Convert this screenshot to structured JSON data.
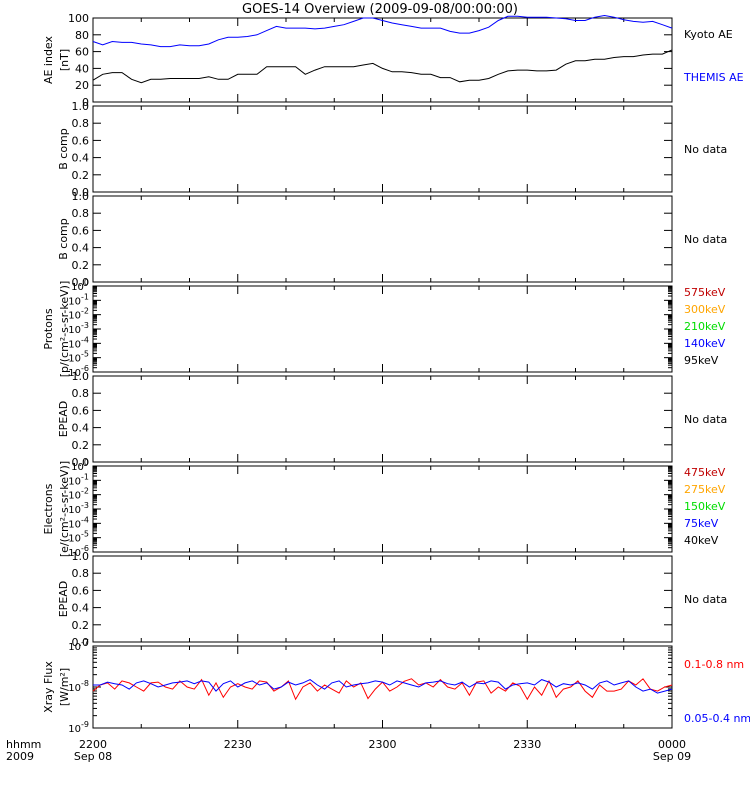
{
  "title": "GOES-14 Overview (2009-09-08/00:00:00)",
  "x_axis": {
    "row_label_1": "hhmm",
    "row_label_2": "2009",
    "ticks": [
      {
        "t": 0,
        "time": "2200",
        "date": "Sep 08"
      },
      {
        "t": 30,
        "time": "2230",
        "date": ""
      },
      {
        "t": 60,
        "time": "2300",
        "date": ""
      },
      {
        "t": 90,
        "time": "2330",
        "date": ""
      },
      {
        "t": 120,
        "time": "0000",
        "date": "Sep 09"
      }
    ],
    "range_minutes": [
      0,
      120
    ]
  },
  "colors": {
    "black": "#000000",
    "blue": "#0000ff",
    "red": "#ff0000",
    "orange": "#ffa500",
    "green": "#00dd00",
    "darkred": "#c00000"
  },
  "chart_data": [
    {
      "type": "line",
      "panel": "ae",
      "ylabel": [
        "AE index",
        "[nT]"
      ],
      "ylim": [
        0,
        100
      ],
      "yticks": [
        "0",
        "20",
        "40",
        "60",
        "80",
        "100"
      ],
      "legend": [
        {
          "label": "Kyoto AE",
          "color": "#000000"
        },
        {
          "label": "THEMIS AE",
          "color": "#0000ff"
        }
      ],
      "series": [
        {
          "name": "Kyoto AE",
          "color": "#000000",
          "x": [
            0,
            2,
            4,
            6,
            8,
            10,
            12,
            14,
            16,
            18,
            20,
            22,
            24,
            26,
            28,
            30,
            32,
            34,
            36,
            38,
            40,
            42,
            44,
            46,
            48,
            50,
            52,
            54,
            56,
            58,
            60,
            62,
            64,
            66,
            68,
            70,
            72,
            74,
            76,
            78,
            80,
            82,
            84,
            86,
            88,
            90,
            92,
            94,
            96,
            98,
            100,
            102,
            104,
            106,
            108,
            110,
            112,
            114,
            116,
            118,
            120
          ],
          "y": [
            26,
            33,
            35,
            35,
            27,
            23,
            27,
            27,
            28,
            28,
            28,
            28,
            30,
            27,
            27,
            33,
            33,
            33,
            42,
            42,
            42,
            42,
            33,
            38,
            42,
            42,
            42,
            42,
            44,
            46,
            40,
            36,
            36,
            35,
            33,
            33,
            29,
            29,
            24,
            26,
            26,
            28,
            33,
            37,
            38,
            38,
            37,
            37,
            38,
            45,
            49,
            49,
            51,
            51,
            53,
            54,
            54,
            56,
            57,
            57,
            62
          ]
        },
        {
          "name": "THEMIS AE",
          "color": "#0000ff",
          "x": [
            0,
            2,
            4,
            6,
            8,
            10,
            12,
            14,
            16,
            18,
            20,
            22,
            24,
            26,
            28,
            30,
            32,
            34,
            36,
            38,
            40,
            42,
            44,
            46,
            48,
            50,
            52,
            54,
            56,
            58,
            60,
            62,
            64,
            66,
            68,
            70,
            72,
            74,
            76,
            78,
            80,
            82,
            84,
            86,
            88,
            90,
            92,
            94,
            96,
            98,
            100,
            102,
            104,
            106,
            108,
            110,
            112,
            114,
            116,
            118,
            120
          ],
          "y": [
            72,
            68,
            72,
            71,
            71,
            69,
            68,
            66,
            66,
            68,
            67,
            67,
            69,
            74,
            77,
            77,
            78,
            80,
            85,
            90,
            88,
            88,
            88,
            87,
            88,
            90,
            92,
            96,
            100,
            100,
            97,
            94,
            92,
            90,
            88,
            88,
            88,
            84,
            82,
            82,
            85,
            89,
            97,
            102,
            102,
            101,
            101,
            101,
            100,
            99,
            97,
            97,
            101,
            103,
            101,
            98,
            96,
            95,
            96,
            92,
            88
          ]
        }
      ]
    },
    {
      "type": "line",
      "panel": "bcomp1",
      "ylabel": [
        "B comp"
      ],
      "ylim": [
        0,
        1
      ],
      "yticks": [
        "0.0",
        "0.2",
        "0.4",
        "0.6",
        "0.8",
        "1.0"
      ],
      "note": "No data",
      "series": []
    },
    {
      "type": "line",
      "panel": "bcomp2",
      "ylabel": [
        "B comp"
      ],
      "ylim": [
        0,
        1
      ],
      "yticks": [
        "0.0",
        "0.2",
        "0.4",
        "0.6",
        "0.8",
        "1.0"
      ],
      "note": "No data",
      "series": []
    },
    {
      "type": "line",
      "panel": "protons",
      "log": true,
      "ylabel": [
        "Protons",
        "[p/(cm²-s-sr-keV)]"
      ],
      "ylim_exp": [
        -6,
        0
      ],
      "legend": [
        {
          "label": "575keV",
          "color": "#c00000"
        },
        {
          "label": "300keV",
          "color": "#ffa500"
        },
        {
          "label": "210keV",
          "color": "#00dd00"
        },
        {
          "label": "140keV",
          "color": "#0000ff"
        },
        {
          "label": "95keV",
          "color": "#000000"
        }
      ],
      "series": []
    },
    {
      "type": "line",
      "panel": "epead1",
      "ylabel": [
        "EPEAD"
      ],
      "ylim": [
        0,
        1
      ],
      "yticks": [
        "0.0",
        "0.2",
        "0.4",
        "0.6",
        "0.8",
        "1.0"
      ],
      "note": "No data",
      "series": []
    },
    {
      "type": "line",
      "panel": "electrons",
      "log": true,
      "ylabel": [
        "Electrons",
        "[e/(cm²-s-sr-keV)]"
      ],
      "ylim_exp": [
        -6,
        0
      ],
      "legend": [
        {
          "label": "475keV",
          "color": "#c00000"
        },
        {
          "label": "275keV",
          "color": "#ffa500"
        },
        {
          "label": "150keV",
          "color": "#00dd00"
        },
        {
          "label": "75keV",
          "color": "#0000ff"
        },
        {
          "label": "40keV",
          "color": "#000000"
        }
      ],
      "series": []
    },
    {
      "type": "line",
      "panel": "epead2",
      "ylabel": [
        "EPEAD"
      ],
      "ylim": [
        0,
        1
      ],
      "yticks": [
        "0.0",
        "0.2",
        "0.4",
        "0.6",
        "0.8",
        "1.0"
      ],
      "note": "No data",
      "series": []
    },
    {
      "type": "line",
      "panel": "xray",
      "log": true,
      "ylabel": [
        "Xray Flux",
        "[W/m²]"
      ],
      "ylim_exp": [
        -9,
        -7
      ],
      "legend": [
        {
          "label": "0.1-0.8 nm",
          "color": "#ff0000"
        },
        {
          "label": "0.05-0.4 nm",
          "color": "#0000ff"
        }
      ],
      "series": [
        {
          "name": "0.1-0.8 nm",
          "color": "#ff0000",
          "x": [
            0,
            1.5,
            3,
            4.5,
            6,
            7.5,
            9,
            10.5,
            12,
            13.5,
            15,
            16.5,
            18,
            19.5,
            21,
            22.5,
            24,
            25.5,
            27,
            28.5,
            30,
            31.5,
            33,
            34.5,
            36,
            37.5,
            39,
            40.5,
            42,
            43.5,
            45,
            46.5,
            48,
            49.5,
            51,
            52.5,
            54,
            55.5,
            57,
            58.5,
            60,
            61.5,
            63,
            64.5,
            66,
            67.5,
            69,
            70.5,
            72,
            73.5,
            75,
            76.5,
            78,
            79.5,
            81,
            82.5,
            84,
            85.5,
            87,
            88.5,
            90,
            91.5,
            93,
            94.5,
            96,
            97.5,
            99,
            100.5,
            102,
            103.5,
            105,
            106.5,
            108,
            109.5,
            111,
            112.5,
            114,
            115.5,
            117,
            118.5,
            120
          ],
          "y": [
            -8.1,
            -7.95,
            -7.9,
            -8.05,
            -7.85,
            -7.9,
            -8.0,
            -8.1,
            -7.9,
            -7.88,
            -8.0,
            -8.05,
            -7.85,
            -8.0,
            -8.05,
            -7.82,
            -8.2,
            -7.9,
            -8.25,
            -8.0,
            -7.92,
            -8.0,
            -8.05,
            -7.85,
            -7.88,
            -8.1,
            -8.0,
            -7.85,
            -8.3,
            -8.0,
            -7.9,
            -8.1,
            -7.95,
            -8.05,
            -8.15,
            -7.85,
            -8.0,
            -7.9,
            -8.28,
            -8.05,
            -7.88,
            -8.1,
            -8.0,
            -7.86,
            -7.8,
            -7.95,
            -7.9,
            -8.0,
            -7.82,
            -8.0,
            -8.05,
            -7.9,
            -8.2,
            -7.88,
            -7.85,
            -8.15,
            -8.0,
            -8.1,
            -7.9,
            -7.98,
            -8.3,
            -8.0,
            -8.2,
            -7.85,
            -8.25,
            -8.05,
            -8.0,
            -7.85,
            -8.1,
            -8.25,
            -7.95,
            -8.1,
            -8.1,
            -8.05,
            -7.85,
            -7.95,
            -7.8,
            -8.05,
            -8.1,
            -8.0,
            -7.95
          ]
        },
        {
          "name": "0.05-0.4 nm",
          "color": "#0000ff",
          "x": [
            0,
            1.5,
            3,
            4.5,
            6,
            7.5,
            9,
            10.5,
            12,
            13.5,
            15,
            16.5,
            18,
            19.5,
            21,
            22.5,
            24,
            25.5,
            27,
            28.5,
            30,
            31.5,
            33,
            34.5,
            36,
            37.5,
            39,
            40.5,
            42,
            43.5,
            45,
            46.5,
            48,
            49.5,
            51,
            52.5,
            54,
            55.5,
            57,
            58.5,
            60,
            61.5,
            63,
            64.5,
            66,
            67.5,
            69,
            70.5,
            72,
            73.5,
            75,
            76.5,
            78,
            79.5,
            81,
            82.5,
            84,
            85.5,
            87,
            88.5,
            90,
            91.5,
            93,
            94.5,
            96,
            97.5,
            99,
            100.5,
            102,
            103.5,
            105,
            106.5,
            108,
            109.5,
            111,
            112.5,
            114,
            115.5,
            117,
            118.5,
            120
          ],
          "y": [
            -7.95,
            -7.95,
            -7.88,
            -7.92,
            -7.95,
            -8.05,
            -7.9,
            -7.85,
            -7.92,
            -8.0,
            -7.95,
            -7.9,
            -7.88,
            -7.85,
            -7.92,
            -7.85,
            -7.88,
            -8.1,
            -7.92,
            -7.85,
            -8.0,
            -7.9,
            -7.85,
            -7.95,
            -7.9,
            -8.05,
            -8.0,
            -7.88,
            -7.95,
            -7.9,
            -7.82,
            -7.95,
            -8.05,
            -7.9,
            -7.85,
            -8.0,
            -7.95,
            -7.92,
            -7.9,
            -7.85,
            -7.88,
            -7.95,
            -7.85,
            -7.9,
            -7.95,
            -8.0,
            -7.9,
            -7.88,
            -7.85,
            -7.92,
            -7.95,
            -7.88,
            -8.0,
            -7.9,
            -7.92,
            -7.85,
            -7.88,
            -8.05,
            -7.95,
            -7.92,
            -7.9,
            -7.95,
            -7.82,
            -7.88,
            -8.0,
            -7.92,
            -7.95,
            -7.9,
            -7.95,
            -8.05,
            -7.9,
            -7.85,
            -7.95,
            -7.9,
            -7.85,
            -8.0,
            -8.1,
            -8.05,
            -8.15,
            -8.1,
            -8.05
          ]
        }
      ]
    }
  ]
}
